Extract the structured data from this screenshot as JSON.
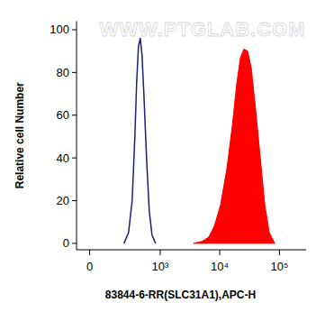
{
  "chart_data": {
    "type": "area",
    "x_label": "83844-6-RR(SLC31A1),APC-H",
    "y_label": "Relative cell Number",
    "annotations": [
      {
        "text": "WWW.PTGLAB.COM"
      }
    ],
    "log": "x",
    "xlim": [
      -70,
      280000
    ],
    "xticks": [
      0,
      {
        "value": 1000,
        "label": "10³"
      },
      {
        "value": 10000,
        "label": "10⁴"
      },
      {
        "value": 100000,
        "label": "10⁵"
      }
    ],
    "ylim": [
      -3,
      104
    ],
    "yticks": [
      0,
      20,
      40,
      60,
      80,
      100
    ],
    "series": [
      {
        "type": "line",
        "color": "#1b1f7a",
        "x": [
          230,
          281,
          327,
          366,
          393,
          423,
          455,
          489,
          526,
          585,
          652,
          725,
          835
        ],
        "values": [
          0,
          5,
          20,
          50,
          75,
          92,
          96,
          88,
          70,
          40,
          15,
          4,
          0
        ]
      },
      {
        "type": "area",
        "color": "#ff0000",
        "x": [
          3630,
          5140,
          6560,
          8090,
          10320,
          13170,
          16230,
          19310,
          22210,
          25530,
          29360,
          33760,
          40170,
          47780,
          56930,
          67720,
          83490
        ],
        "values": [
          0,
          1,
          3,
          8,
          18,
          35,
          55,
          75,
          87,
          91,
          90,
          82,
          62,
          40,
          18,
          5,
          0
        ]
      }
    ]
  }
}
